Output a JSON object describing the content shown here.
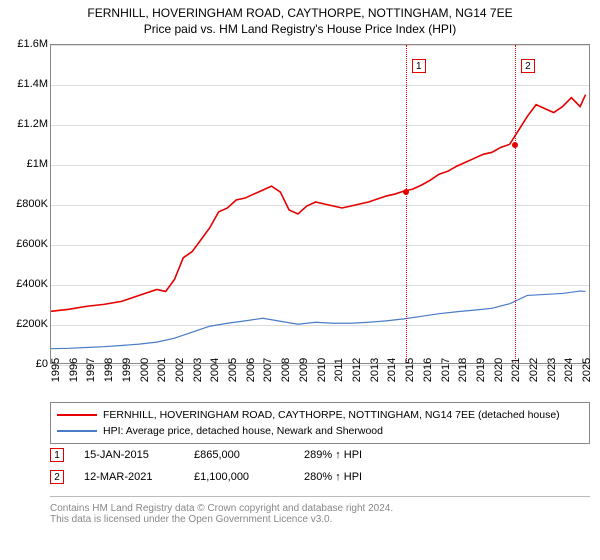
{
  "title": "FERNHILL, HOVERINGHAM ROAD, CAYTHORPE, NOTTINGHAM, NG14 7EE",
  "subtitle": "Price paid vs. HM Land Registry's House Price Index (HPI)",
  "chart": {
    "type": "line",
    "plot_bg": "#ffffff",
    "grid_color": "#dddddd",
    "axis_color": "#888888",
    "ylim": [
      0,
      1600000
    ],
    "yticks": [
      {
        "v": 0,
        "label": "£0"
      },
      {
        "v": 200000,
        "label": "£200K"
      },
      {
        "v": 400000,
        "label": "£400K"
      },
      {
        "v": 600000,
        "label": "£600K"
      },
      {
        "v": 800000,
        "label": "£800K"
      },
      {
        "v": 1000000,
        "label": "£1M"
      },
      {
        "v": 1200000,
        "label": "£1.2M"
      },
      {
        "v": 1400000,
        "label": "£1.4M"
      },
      {
        "v": 1600000,
        "label": "£1.6M"
      }
    ],
    "xlim": [
      1995,
      2025.5
    ],
    "xticks": [
      1995,
      1996,
      1997,
      1998,
      1999,
      2000,
      2001,
      2002,
      2003,
      2004,
      2005,
      2006,
      2007,
      2008,
      2009,
      2010,
      2011,
      2012,
      2013,
      2014,
      2015,
      2016,
      2017,
      2018,
      2019,
      2020,
      2021,
      2022,
      2023,
      2024,
      2025
    ],
    "series": [
      {
        "name": "property",
        "label": "FERNHILL, HOVERINGHAM ROAD, CAYTHORPE, NOTTINGHAM, NG14 7EE (detached house)",
        "color": "#e60000",
        "width": 1.6,
        "data": [
          [
            1995,
            260000
          ],
          [
            1996,
            270000
          ],
          [
            1997,
            285000
          ],
          [
            1998,
            295000
          ],
          [
            1999,
            310000
          ],
          [
            2000,
            340000
          ],
          [
            2001,
            370000
          ],
          [
            2001.5,
            360000
          ],
          [
            2002,
            420000
          ],
          [
            2002.5,
            530000
          ],
          [
            2003,
            560000
          ],
          [
            2003.5,
            620000
          ],
          [
            2004,
            680000
          ],
          [
            2004.5,
            760000
          ],
          [
            2005,
            780000
          ],
          [
            2005.5,
            820000
          ],
          [
            2006,
            830000
          ],
          [
            2006.5,
            850000
          ],
          [
            2007,
            870000
          ],
          [
            2007.5,
            890000
          ],
          [
            2008,
            860000
          ],
          [
            2008.5,
            770000
          ],
          [
            2009,
            750000
          ],
          [
            2009.5,
            790000
          ],
          [
            2010,
            810000
          ],
          [
            2010.5,
            800000
          ],
          [
            2011,
            790000
          ],
          [
            2011.5,
            780000
          ],
          [
            2012,
            790000
          ],
          [
            2012.5,
            800000
          ],
          [
            2013,
            810000
          ],
          [
            2013.5,
            825000
          ],
          [
            2014,
            840000
          ],
          [
            2014.5,
            850000
          ],
          [
            2015,
            865000
          ],
          [
            2015.5,
            875000
          ],
          [
            2016,
            895000
          ],
          [
            2016.5,
            920000
          ],
          [
            2017,
            950000
          ],
          [
            2017.5,
            965000
          ],
          [
            2018,
            990000
          ],
          [
            2018.5,
            1010000
          ],
          [
            2019,
            1030000
          ],
          [
            2019.5,
            1050000
          ],
          [
            2020,
            1060000
          ],
          [
            2020.5,
            1085000
          ],
          [
            2021,
            1100000
          ],
          [
            2021.5,
            1170000
          ],
          [
            2022,
            1240000
          ],
          [
            2022.5,
            1300000
          ],
          [
            2023,
            1280000
          ],
          [
            2023.5,
            1260000
          ],
          [
            2024,
            1290000
          ],
          [
            2024.5,
            1335000
          ],
          [
            2025,
            1290000
          ],
          [
            2025.3,
            1350000
          ]
        ]
      },
      {
        "name": "hpi",
        "label": "HPI: Average price, detached house, Newark and Sherwood",
        "color": "#4a7bc8",
        "width": 1.2,
        "data": [
          [
            1995,
            72000
          ],
          [
            1996,
            74000
          ],
          [
            1997,
            78000
          ],
          [
            1998,
            82000
          ],
          [
            1999,
            88000
          ],
          [
            2000,
            95000
          ],
          [
            2001,
            105000
          ],
          [
            2002,
            125000
          ],
          [
            2003,
            155000
          ],
          [
            2004,
            185000
          ],
          [
            2005,
            200000
          ],
          [
            2006,
            212000
          ],
          [
            2007,
            225000
          ],
          [
            2008,
            210000
          ],
          [
            2009,
            195000
          ],
          [
            2010,
            205000
          ],
          [
            2011,
            200000
          ],
          [
            2012,
            200000
          ],
          [
            2013,
            205000
          ],
          [
            2014,
            212000
          ],
          [
            2015,
            222000
          ],
          [
            2016,
            235000
          ],
          [
            2017,
            248000
          ],
          [
            2018,
            258000
          ],
          [
            2019,
            266000
          ],
          [
            2020,
            275000
          ],
          [
            2021,
            298000
          ],
          [
            2022,
            340000
          ],
          [
            2023,
            345000
          ],
          [
            2024,
            350000
          ],
          [
            2025,
            362000
          ],
          [
            2025.3,
            360000
          ]
        ]
      }
    ],
    "events": [
      {
        "n": "1",
        "x": 2015.04,
        "color": "#e60000",
        "date": "15-JAN-2015",
        "price": "£865,000",
        "pct": "289% ↑ HPI",
        "point_y": 865000
      },
      {
        "n": "2",
        "x": 2021.2,
        "color": "#e60000",
        "date": "12-MAR-2021",
        "price": "£1,100,000",
        "pct": "280% ↑ HPI",
        "point_y": 1100000
      }
    ]
  },
  "legend_border": "#888888",
  "footer": {
    "line1": "Contains HM Land Registry data © Crown copyright and database right 2024.",
    "line2": "This data is licensed under the Open Government Licence v3.0."
  }
}
